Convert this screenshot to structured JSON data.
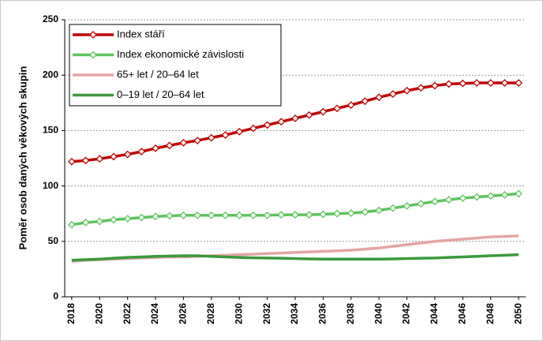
{
  "chart_data": {
    "type": "line",
    "y_label": "Poměr osob daných věkových skupin",
    "x": [
      2018,
      2019,
      2020,
      2021,
      2022,
      2023,
      2024,
      2025,
      2026,
      2027,
      2028,
      2029,
      2030,
      2031,
      2032,
      2033,
      2034,
      2035,
      2036,
      2037,
      2038,
      2039,
      2040,
      2041,
      2042,
      2043,
      2044,
      2045,
      2046,
      2047,
      2048,
      2049,
      2050
    ],
    "xlim": [
      2017.5,
      2050.5
    ],
    "xticks": [
      2018,
      2020,
      2022,
      2024,
      2026,
      2028,
      2030,
      2032,
      2034,
      2036,
      2038,
      2040,
      2042,
      2044,
      2046,
      2048,
      2050
    ],
    "ylim": [
      0,
      250
    ],
    "yticks": [
      0,
      50,
      100,
      150,
      200,
      250
    ],
    "grid": true,
    "legend": "top-left",
    "series": [
      {
        "name": "Index stáří",
        "color": "#c00000",
        "marker": "diamond",
        "values": [
          122,
          123,
          124.5,
          126.5,
          128.5,
          131,
          134,
          136.5,
          139,
          141,
          143.5,
          146,
          149,
          152,
          155,
          158,
          161,
          164,
          167,
          170,
          173,
          176.5,
          180,
          183,
          186,
          188.5,
          190.5,
          192,
          192.5,
          193,
          193,
          193,
          193
        ]
      },
      {
        "name": "Index ekonomické závislosti",
        "color": "#5cc45c",
        "marker": "diamond",
        "values": [
          65,
          67,
          68,
          69.5,
          70.5,
          71.5,
          72.5,
          73,
          73.5,
          73.5,
          73.5,
          73.5,
          73.5,
          73.5,
          73.5,
          74,
          74,
          74,
          74.5,
          75,
          75.5,
          76.5,
          78,
          80,
          82,
          84,
          86,
          87.5,
          89,
          90,
          91,
          92,
          93
        ]
      },
      {
        "name": "65+ let / 20–64 let",
        "color": "#e6a3a3",
        "marker": "none",
        "values": [
          32,
          33,
          33.5,
          34,
          34.5,
          35,
          35.5,
          36,
          36,
          36.5,
          37,
          37.5,
          38,
          38.5,
          39,
          39.5,
          40,
          40.5,
          41,
          41.5,
          42,
          43,
          44,
          45.5,
          47,
          48.5,
          50,
          51,
          52,
          53,
          54,
          54.5,
          55
        ]
      },
      {
        "name": "0–19 let / 20–64 let",
        "color": "#3a9a3a",
        "marker": "none",
        "values": [
          33,
          33.5,
          34,
          34.8,
          35.5,
          36,
          36.5,
          36.8,
          37,
          37,
          36.5,
          36,
          35.5,
          35.2,
          35,
          34.8,
          34.5,
          34.2,
          34,
          34,
          34,
          34,
          34,
          34.2,
          34.5,
          34.8,
          35,
          35.5,
          36,
          36.5,
          37,
          37.5,
          38
        ]
      }
    ]
  }
}
